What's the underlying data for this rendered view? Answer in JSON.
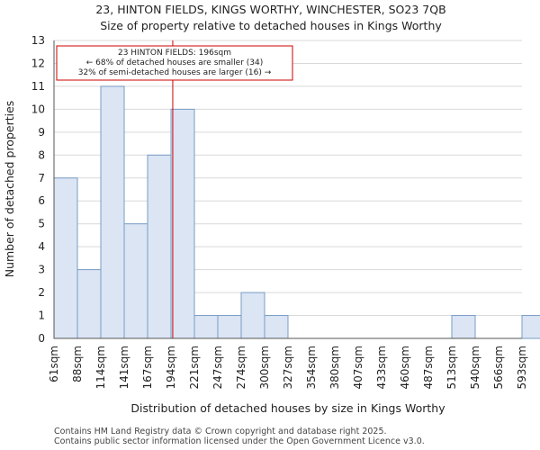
{
  "chart_data": {
    "type": "bar",
    "title": "23, HINTON FIELDS, KINGS WORTHY, WINCHESTER, SO23 7QB",
    "subtitle": "Size of property relative to detached houses in Kings Worthy",
    "xlabel": "Distribution of detached houses by size in Kings Worthy",
    "ylabel": "Number of detached properties",
    "categories": [
      "61sqm",
      "88sqm",
      "114sqm",
      "141sqm",
      "167sqm",
      "194sqm",
      "221sqm",
      "247sqm",
      "274sqm",
      "300sqm",
      "327sqm",
      "354sqm",
      "380sqm",
      "407sqm",
      "433sqm",
      "460sqm",
      "487sqm",
      "513sqm",
      "540sqm",
      "566sqm",
      "593sqm"
    ],
    "values": [
      7,
      3,
      11,
      5,
      8,
      10,
      1,
      1,
      2,
      1,
      0,
      0,
      0,
      0,
      0,
      0,
      0,
      1,
      0,
      0,
      1
    ],
    "ylim": [
      0,
      13
    ],
    "yticks": [
      0,
      1,
      2,
      3,
      4,
      5,
      6,
      7,
      8,
      9,
      10,
      11,
      12,
      13
    ],
    "marker": {
      "value_sqm": 196,
      "line1": "23 HINTON FIELDS: 196sqm",
      "line2": "← 68% of detached houses are smaller (34)",
      "line3": "32% of semi-detached houses are larger (16) →"
    },
    "colors": {
      "bar_fill": "#dbe5f4",
      "bar_stroke": "#7a9cc6",
      "marker": "#cc0000",
      "grid": "#d9d9d9"
    }
  },
  "footer": {
    "line1": "Contains HM Land Registry data © Crown copyright and database right 2025.",
    "line2": "Contains public sector information licensed under the Open Government Licence v3.0."
  }
}
